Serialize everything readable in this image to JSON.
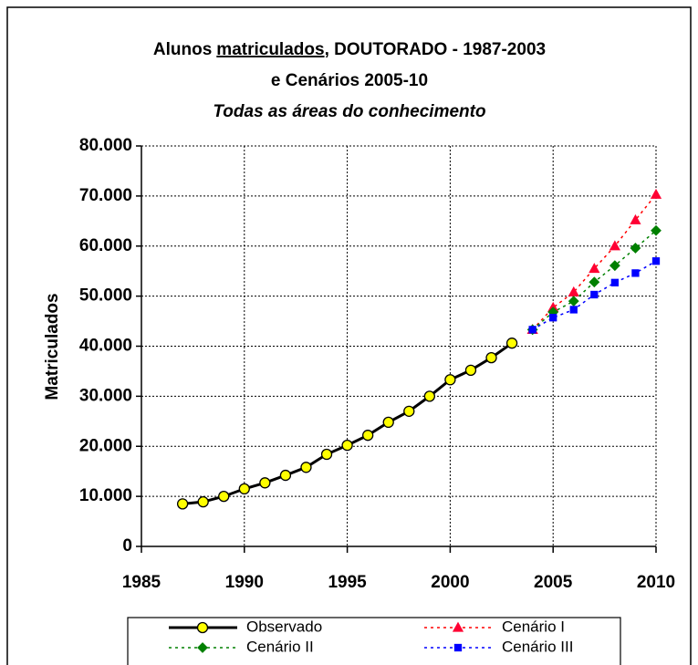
{
  "chart_data": {
    "type": "line",
    "title": [
      "Alunos",
      "matriculados",
      ", DOUTORADO - 1987-2003"
    ],
    "subtitle": "e Cenários 2005-10",
    "subtitle2": "Todas as áreas do conhecimento",
    "ylabel": "Matriculados",
    "xlim": [
      1985,
      2010
    ],
    "xticks": [
      1985,
      1990,
      1995,
      2000,
      2005,
      2010
    ],
    "ylim": [
      0,
      80000
    ],
    "yticks": [
      0,
      {
        "value": 10000,
        "label": "10.000"
      },
      {
        "value": 20000,
        "label": "20.000"
      },
      {
        "value": 30000,
        "label": "30.000"
      },
      {
        "value": 40000,
        "label": "40.000"
      },
      {
        "value": 50000,
        "label": "50.000"
      },
      {
        "value": 60000,
        "label": "60.000"
      },
      {
        "value": 70000,
        "label": "70.000"
      },
      {
        "value": 80000,
        "label": "80.000"
      }
    ],
    "grid": true,
    "legend": "bottom",
    "series": [
      {
        "name": "Observado",
        "color": "#000000",
        "marker": "circle",
        "marker_color": "#ffff00",
        "style": "solid",
        "x": [
          1987,
          1988,
          1989,
          1990,
          1991,
          1992,
          1993,
          1994,
          1995,
          1996,
          1997,
          1998,
          1999,
          2000,
          2001,
          2002,
          2003
        ],
        "values": [
          8500,
          8900,
          10000,
          11500,
          12700,
          14200,
          15800,
          18400,
          20200,
          22200,
          24800,
          27000,
          30000,
          33300,
          35200,
          37700,
          40600
        ]
      },
      {
        "name": "Cenário I",
        "color": "#ff0000",
        "marker": "triangle",
        "marker_color": "#ff0033",
        "style": "dashed",
        "x": [
          2004,
          2005,
          2006,
          2007,
          2008,
          2009,
          2010
        ],
        "values": [
          43300,
          47700,
          50800,
          55500,
          60000,
          65200,
          70300
        ]
      },
      {
        "name": "Cenário II",
        "color": "#008000",
        "marker": "diamond",
        "marker_color": "#008000",
        "style": "dashed",
        "x": [
          2004,
          2005,
          2006,
          2007,
          2008,
          2009,
          2010
        ],
        "values": [
          43300,
          46800,
          49000,
          52800,
          56100,
          59600,
          63100
        ]
      },
      {
        "name": "Cenário III",
        "color": "#0000ff",
        "marker": "square",
        "marker_color": "#0000ff",
        "style": "dashed",
        "x": [
          2004,
          2005,
          2006,
          2007,
          2008,
          2009,
          2010
        ],
        "values": [
          43300,
          45700,
          47300,
          50300,
          52700,
          54600,
          57000
        ]
      }
    ]
  }
}
